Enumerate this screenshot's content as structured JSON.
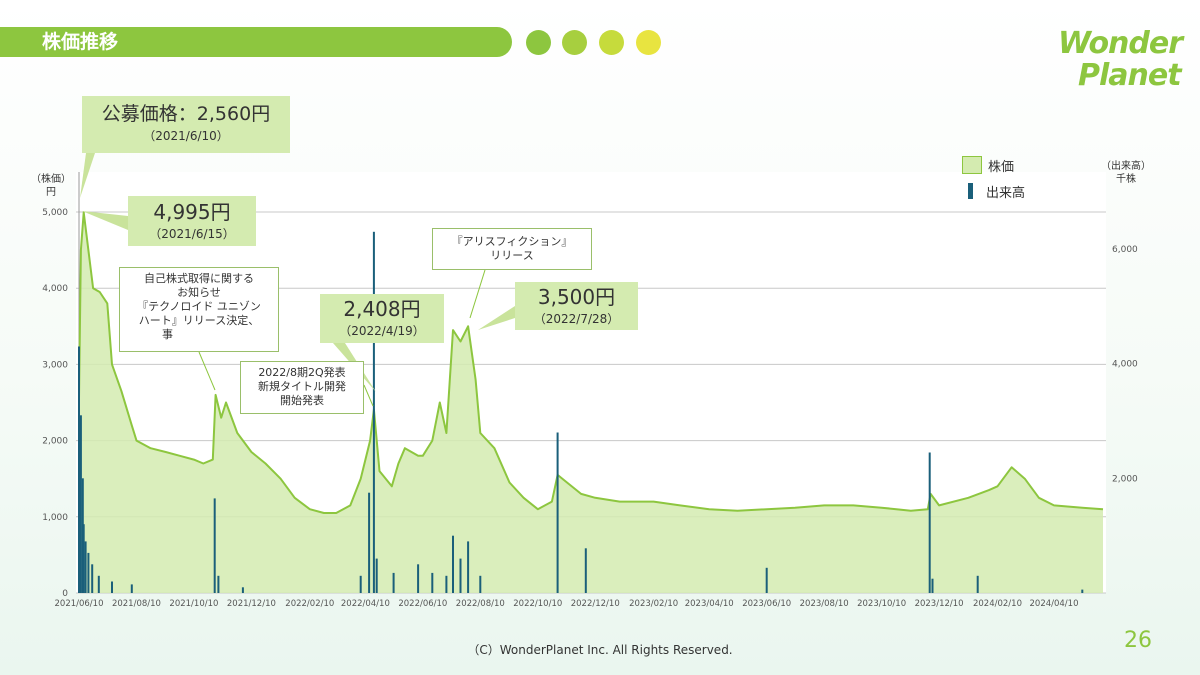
{
  "header": {
    "title": "株価推移"
  },
  "colors": {
    "accent": "#8dc63f",
    "dots": [
      "#8dc63f",
      "#a7cf3f",
      "#c6db3c",
      "#e8e440"
    ],
    "volume_bar": "#1a5f7a",
    "price_fill": "#d4ebb0"
  },
  "logo": {
    "line1": "Wonder",
    "line2": "Planet"
  },
  "left_axis_unit": [
    "（株価）",
    "円"
  ],
  "right_axis_unit": [
    "（出来高）",
    "千株"
  ],
  "legend": [
    {
      "label": "株価",
      "icon": "area-swatch"
    },
    {
      "label": "出来高",
      "icon": "bar-swatch"
    }
  ],
  "callouts": {
    "ipo": {
      "title": "公募価格：2,560円",
      "date": "（2021/6/10）"
    },
    "peak": {
      "price": "4,995円",
      "date": "（2021/6/15）"
    },
    "apr": {
      "price": "2,408円",
      "date": "（2022/4/19）"
    },
    "jul": {
      "price": "3,500円",
      "date": "（2022/7/28）"
    },
    "buyback": {
      "lines": [
        "自己株式取得に関する",
        "お知らせ",
        "『テクノロイド ユニゾン",
        "ハート』リリース決定、",
        "事"
      ]
    },
    "q2": {
      "lines": [
        "2022/8期2Q発表",
        "新規タイトル開発",
        "開始発表"
      ]
    },
    "alice": {
      "lines": [
        "『アリスフィクション』",
        "リリース"
      ]
    }
  },
  "footer": {
    "copyright": "（C）WonderPlanet Inc.  All Rights Reserved.",
    "page": "26"
  },
  "chart_data": {
    "type": "area",
    "x_ticks": [
      "2021/06/10",
      "2021/08/10",
      "2021/10/10",
      "2021/12/10",
      "2022/02/10",
      "2022/04/10",
      "2022/06/10",
      "2022/08/10",
      "2022/10/10",
      "2022/12/10",
      "2023/02/10",
      "2023/04/10",
      "2023/06/10",
      "2023/08/10",
      "2023/10/10",
      "2023/12/10",
      "2024/02/10",
      "2024/04/10"
    ],
    "y_left_ticks": [
      0,
      1000,
      2000,
      3000,
      4000,
      5000
    ],
    "y_left_labels": [
      "0",
      "1,000",
      "2,000",
      "3,000",
      "4,000",
      "5,000"
    ],
    "y_left_range": [
      0,
      5000
    ],
    "y_right_ticks": [
      2000,
      4000,
      6000
    ],
    "y_right_labels": [
      "2,000",
      "4,000",
      "6,000"
    ],
    "y_right_range": [
      0,
      6700
    ],
    "series": [
      {
        "name": "株価",
        "type": "area",
        "points": [
          [
            "2021/06/10",
            2560
          ],
          [
            "2021/06/12",
            4500
          ],
          [
            "2021/06/15",
            4995
          ],
          [
            "2021/06/18",
            4700
          ],
          [
            "2021/06/25",
            4000
          ],
          [
            "2021/07/02",
            3950
          ],
          [
            "2021/07/10",
            3800
          ],
          [
            "2021/07/15",
            3000
          ],
          [
            "2021/07/25",
            2650
          ],
          [
            "2021/08/05",
            2200
          ],
          [
            "2021/08/10",
            2000
          ],
          [
            "2021/08/25",
            1900
          ],
          [
            "2021/09/10",
            1850
          ],
          [
            "2021/09/25",
            1800
          ],
          [
            "2021/10/10",
            1750
          ],
          [
            "2021/10/20",
            1700
          ],
          [
            "2021/10/30",
            1750
          ],
          [
            "2021/11/02",
            2600
          ],
          [
            "2021/11/08",
            2300
          ],
          [
            "2021/11/13",
            2500
          ],
          [
            "2021/11/25",
            2100
          ],
          [
            "2021/12/10",
            1850
          ],
          [
            "2021/12/25",
            1700
          ],
          [
            "2022/01/10",
            1500
          ],
          [
            "2022/01/25",
            1250
          ],
          [
            "2022/02/10",
            1100
          ],
          [
            "2022/02/25",
            1050
          ],
          [
            "2022/03/10",
            1050
          ],
          [
            "2022/03/25",
            1150
          ],
          [
            "2022/04/05",
            1500
          ],
          [
            "2022/04/15",
            2000
          ],
          [
            "2022/04/19",
            2408
          ],
          [
            "2022/04/25",
            1600
          ],
          [
            "2022/05/08",
            1400
          ],
          [
            "2022/05/15",
            1700
          ],
          [
            "2022/05/22",
            1900
          ],
          [
            "2022/06/05",
            1800
          ],
          [
            "2022/06/10",
            1800
          ],
          [
            "2022/06/20",
            2000
          ],
          [
            "2022/06/28",
            2500
          ],
          [
            "2022/07/05",
            2100
          ],
          [
            "2022/07/12",
            3450
          ],
          [
            "2022/07/20",
            3300
          ],
          [
            "2022/07/28",
            3500
          ],
          [
            "2022/08/05",
            2800
          ],
          [
            "2022/08/10",
            2100
          ],
          [
            "2022/08/25",
            1900
          ],
          [
            "2022/09/10",
            1450
          ],
          [
            "2022/09/25",
            1250
          ],
          [
            "2022/10/10",
            1100
          ],
          [
            "2022/10/25",
            1200
          ],
          [
            "2022/10/31",
            1550
          ],
          [
            "2022/11/10",
            1450
          ],
          [
            "2022/11/25",
            1300
          ],
          [
            "2022/12/10",
            1250
          ],
          [
            "2023/01/05",
            1200
          ],
          [
            "2023/02/10",
            1200
          ],
          [
            "2023/03/10",
            1150
          ],
          [
            "2023/04/10",
            1100
          ],
          [
            "2023/05/10",
            1080
          ],
          [
            "2023/06/10",
            1100
          ],
          [
            "2023/07/10",
            1120
          ],
          [
            "2023/08/10",
            1150
          ],
          [
            "2023/09/10",
            1150
          ],
          [
            "2023/10/10",
            1120
          ],
          [
            "2023/11/10",
            1080
          ],
          [
            "2023/11/28",
            1100
          ],
          [
            "2023/12/01",
            1300
          ],
          [
            "2023/12/10",
            1150
          ],
          [
            "2024/01/10",
            1250
          ],
          [
            "2024/02/01",
            1350
          ],
          [
            "2024/02/10",
            1400
          ],
          [
            "2024/02/25",
            1650
          ],
          [
            "2024/03/10",
            1500
          ],
          [
            "2024/03/25",
            1250
          ],
          [
            "2024/04/10",
            1150
          ],
          [
            "2024/05/10",
            1120
          ],
          [
            "2024/06/01",
            1100
          ]
        ]
      },
      {
        "name": "出来高",
        "type": "bar",
        "axis": "right",
        "points": [
          [
            "2021/06/10",
            4300
          ],
          [
            "2021/06/11",
            1500
          ],
          [
            "2021/06/12",
            3100
          ],
          [
            "2021/06/14",
            2000
          ],
          [
            "2021/06/15",
            1200
          ],
          [
            "2021/06/17",
            900
          ],
          [
            "2021/06/20",
            700
          ],
          [
            "2021/06/24",
            500
          ],
          [
            "2021/07/01",
            300
          ],
          [
            "2021/07/15",
            200
          ],
          [
            "2021/08/05",
            150
          ],
          [
            "2021/11/01",
            1650
          ],
          [
            "2021/11/05",
            300
          ],
          [
            "2021/12/01",
            100
          ],
          [
            "2022/04/05",
            300
          ],
          [
            "2022/04/14",
            1750
          ],
          [
            "2022/04/19",
            6300
          ],
          [
            "2022/04/22",
            600
          ],
          [
            "2022/05/10",
            350
          ],
          [
            "2022/06/05",
            500
          ],
          [
            "2022/06/20",
            350
          ],
          [
            "2022/07/05",
            300
          ],
          [
            "2022/07/12",
            1000
          ],
          [
            "2022/07/20",
            600
          ],
          [
            "2022/07/28",
            900
          ],
          [
            "2022/08/10",
            300
          ],
          [
            "2022/10/31",
            2800
          ],
          [
            "2022/11/30",
            780
          ],
          [
            "2023/06/10",
            440
          ],
          [
            "2023/11/30",
            2450
          ],
          [
            "2023/12/03",
            250
          ],
          [
            "2024/01/20",
            300
          ],
          [
            "2024/05/10",
            60
          ]
        ]
      }
    ]
  }
}
